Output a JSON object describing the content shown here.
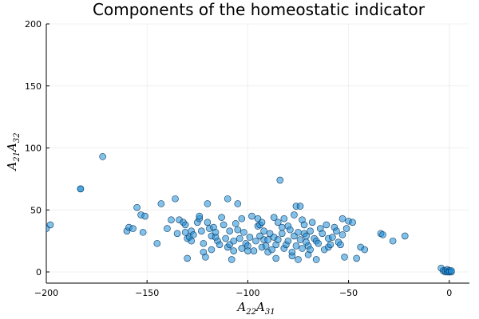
{
  "chart_data": {
    "type": "scatter",
    "title": "Components of the homeostatic indicator",
    "xlabel": "A22A31",
    "ylabel": "A21A32",
    "xlim": [
      -200,
      10
    ],
    "ylim": [
      -9,
      200
    ],
    "xticks": [
      -200,
      -150,
      -100,
      -50,
      0
    ],
    "yticks": [
      0,
      50,
      100,
      150,
      200
    ],
    "grid": true,
    "legend": "none",
    "colors": {
      "marker": "#1f8ed6",
      "edge": "#0b3a66"
    },
    "x": [
      -200,
      -198,
      -183,
      -183,
      -172,
      -160,
      -159,
      -157,
      -155,
      -153,
      -152,
      -151,
      -145,
      -143,
      -140,
      -138,
      -136,
      -135,
      -134,
      -132,
      -131,
      -131,
      -130,
      -130,
      -129,
      -128,
      -128,
      -127,
      -125,
      -124,
      -124,
      -123,
      -122,
      -122,
      -121,
      -120,
      -120,
      -119,
      -118,
      -118,
      -117,
      -116,
      -116,
      -115,
      -114,
      -113,
      -112,
      -111,
      -110,
      -110,
      -109,
      -109,
      -108,
      -107,
      -107,
      -106,
      -105,
      -105,
      -104,
      -103,
      -103,
      -102,
      -101,
      -100,
      -100,
      -99,
      -98,
      -97,
      -96,
      -95,
      -95,
      -94,
      -94,
      -93,
      -93,
      -92,
      -92,
      -91,
      -90,
      -90,
      -89,
      -88,
      -87,
      -87,
      -86,
      -86,
      -85,
      -85,
      -84,
      -83,
      -83,
      -82,
      -82,
      -81,
      -80,
      -80,
      -79,
      -78,
      -78,
      -77,
      -77,
      -76,
      -76,
      -75,
      -75,
      -74,
      -74,
      -73,
      -73,
      -72,
      -72,
      -71,
      -71,
      -70,
      -70,
      -69,
      -69,
      -68,
      -67,
      -66,
      -66,
      -65,
      -64,
      -63,
      -62,
      -61,
      -60,
      -60,
      -59,
      -58,
      -57,
      -56,
      -55,
      -54,
      -53,
      -53,
      -52,
      -51,
      -50,
      -48,
      -46,
      -44,
      -42,
      -34,
      -33,
      -28,
      -22,
      -4,
      -3,
      -2,
      -2,
      -1,
      -1,
      0,
      0,
      0,
      0,
      1,
      1
    ],
    "y": [
      35,
      38,
      67,
      67,
      93,
      33,
      36,
      35,
      52,
      46,
      32,
      45,
      23,
      55,
      35,
      42,
      59,
      31,
      42,
      40,
      38,
      32,
      27,
      11,
      28,
      33,
      25,
      30,
      40,
      43,
      45,
      33,
      23,
      16,
      12,
      40,
      55,
      35,
      18,
      29,
      36,
      28,
      32,
      25,
      22,
      44,
      38,
      27,
      20,
      59,
      33,
      22,
      10,
      17,
      25,
      39,
      34,
      55,
      27,
      19,
      43,
      32,
      23,
      21,
      17,
      28,
      45,
      17,
      25,
      43,
      37,
      38,
      29,
      20,
      40,
      26,
      33,
      21,
      26,
      16,
      31,
      18,
      44,
      28,
      22,
      11,
      40,
      26,
      74,
      36,
      31,
      43,
      19,
      22,
      25,
      37,
      34,
      13,
      16,
      29,
      46,
      21,
      53,
      32,
      10,
      26,
      53,
      42,
      19,
      38,
      31,
      29,
      24,
      21,
      14,
      33,
      18,
      40,
      27,
      25,
      10,
      23,
      35,
      31,
      18,
      38,
      20,
      27,
      22,
      28,
      36,
      33,
      24,
      22,
      30,
      43,
      12,
      35,
      41,
      40,
      11,
      20,
      18,
      31,
      30,
      25,
      29,
      3,
      1,
      0,
      1,
      0,
      2,
      0,
      1,
      1,
      0,
      0,
      1
    ]
  }
}
